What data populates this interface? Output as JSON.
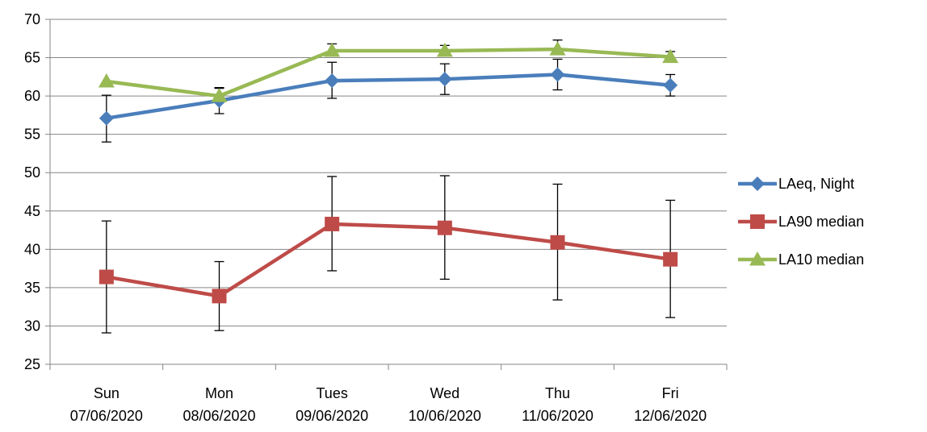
{
  "chart_data": {
    "type": "line",
    "title": "",
    "xlabel": "",
    "ylabel": "",
    "ylim": [
      25,
      70
    ],
    "yticks": [
      25,
      30,
      35,
      40,
      45,
      50,
      55,
      60,
      65,
      70
    ],
    "grid": "horizontal",
    "legend_position": "right",
    "categories": [
      {
        "day": "Sun",
        "date": "07/06/2020"
      },
      {
        "day": "Mon",
        "date": "08/06/2020"
      },
      {
        "day": "Tues",
        "date": "09/06/2020"
      },
      {
        "day": "Wed",
        "date": "10/06/2020"
      },
      {
        "day": "Thu",
        "date": "11/06/2020"
      },
      {
        "day": "Fri",
        "date": "12/06/2020"
      }
    ],
    "series": [
      {
        "name": "LAeq, Night",
        "color": "#4A7EBB",
        "marker": "diamond",
        "values": [
          57.1,
          59.4,
          62.0,
          62.2,
          62.8,
          61.4
        ],
        "error_low": [
          54.0,
          57.7,
          59.7,
          60.2,
          60.8,
          60.0
        ],
        "error_high": [
          60.1,
          61.0,
          64.4,
          64.2,
          64.8,
          62.8
        ]
      },
      {
        "name": "LA90 median",
        "color": "#BE4B48",
        "marker": "square",
        "values": [
          36.4,
          33.9,
          43.3,
          42.8,
          40.9,
          38.7
        ],
        "error_low": [
          29.1,
          29.4,
          37.2,
          36.1,
          33.4,
          31.1
        ],
        "error_high": [
          43.7,
          38.4,
          49.5,
          49.6,
          48.5,
          46.4
        ]
      },
      {
        "name": "LA10 median",
        "color": "#98B954",
        "marker": "triangle",
        "values": [
          61.9,
          60.0,
          65.9,
          65.9,
          66.1,
          65.1
        ],
        "error_low": [
          null,
          null,
          null,
          null,
          null,
          null
        ],
        "error_high": [
          null,
          61.1,
          66.8,
          66.6,
          67.3,
          65.8
        ]
      }
    ]
  }
}
